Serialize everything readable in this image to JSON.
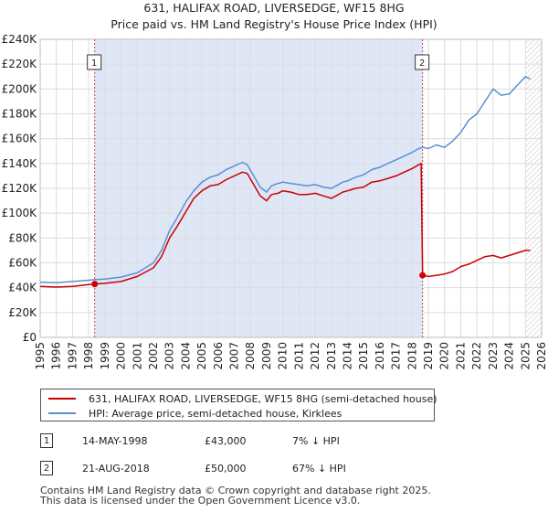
{
  "chart_data": {
    "type": "line",
    "title": "631, HALIFAX ROAD, LIVERSEDGE, WF15 8HG",
    "subtitle": "Price paid vs. HM Land Registry's House Price Index (HPI)",
    "xlim": [
      1995,
      2026
    ],
    "ylim": [
      0,
      240000
    ],
    "x_ticks": [
      1995,
      1996,
      1997,
      1998,
      1999,
      2000,
      2001,
      2002,
      2003,
      2004,
      2005,
      2006,
      2007,
      2008,
      2009,
      2010,
      2011,
      2012,
      2013,
      2014,
      2015,
      2016,
      2017,
      2018,
      2019,
      2020,
      2021,
      2022,
      2023,
      2024,
      2025,
      2026
    ],
    "y_ticks": [
      0,
      20000,
      40000,
      60000,
      80000,
      100000,
      120000,
      140000,
      160000,
      180000,
      200000,
      220000,
      240000
    ],
    "y_tick_labels": [
      "£0",
      "£20K",
      "£40K",
      "£60K",
      "£80K",
      "£100K",
      "£120K",
      "£140K",
      "£160K",
      "£180K",
      "£200K",
      "£220K",
      "£240K"
    ],
    "colors": {
      "price": "#cc0000",
      "hpi": "#5b8fd0",
      "shade": "#dfe7f7",
      "grid": "#dddddd"
    },
    "shaded_range": [
      1998.37,
      2018.64
    ],
    "future_hatch_start": 2025.0,
    "series": [
      {
        "name": "631, HALIFAX ROAD, LIVERSEDGE, WF15 8HG (semi-detached house)",
        "x": [
          1995.0,
          1996.0,
          1997.0,
          1998.0,
          1998.37,
          1999.0,
          2000.0,
          2001.0,
          2002.0,
          2002.5,
          2003.0,
          2003.5,
          2004.0,
          2004.5,
          2005.0,
          2005.5,
          2006.0,
          2006.5,
          2007.0,
          2007.5,
          2007.8,
          2008.2,
          2008.6,
          2009.0,
          2009.3,
          2009.7,
          2010.0,
          2010.5,
          2011.0,
          2011.5,
          2012.0,
          2012.5,
          2013.0,
          2013.3,
          2013.7,
          2014.0,
          2014.5,
          2015.0,
          2015.5,
          2016.0,
          2016.5,
          2017.0,
          2017.5,
          2018.0,
          2018.4,
          2018.55,
          2018.64,
          2019.0,
          2019.5,
          2020.0,
          2020.5,
          2021.0,
          2021.5,
          2022.0,
          2022.5,
          2023.0,
          2023.5,
          2024.0,
          2024.5,
          2025.0,
          2025.3
        ],
        "values": [
          41000,
          40500,
          41000,
          42500,
          43000,
          43500,
          45000,
          49000,
          56000,
          65000,
          80000,
          90000,
          101000,
          112000,
          118000,
          122000,
          123000,
          127000,
          130000,
          133000,
          132000,
          123000,
          114000,
          110000,
          115000,
          116000,
          118000,
          117000,
          115000,
          115000,
          116000,
          114000,
          112000,
          114000,
          117000,
          118000,
          120000,
          121000,
          125000,
          126000,
          128000,
          130000,
          133000,
          136000,
          139000,
          140000,
          50000,
          49000,
          50000,
          51000,
          53000,
          57000,
          59000,
          62000,
          65000,
          66000,
          64000,
          66000,
          68000,
          70000,
          70000
        ]
      },
      {
        "name": "HPI: Average price, semi-detached house, Kirklees",
        "x": [
          1995.0,
          1996.0,
          1997.0,
          1998.0,
          1998.37,
          1999.0,
          2000.0,
          2001.0,
          2002.0,
          2002.5,
          2003.0,
          2003.5,
          2004.0,
          2004.5,
          2005.0,
          2005.5,
          2006.0,
          2006.5,
          2007.0,
          2007.5,
          2007.8,
          2008.2,
          2008.6,
          2009.0,
          2009.3,
          2009.7,
          2010.0,
          2010.5,
          2011.0,
          2011.5,
          2012.0,
          2012.5,
          2013.0,
          2013.3,
          2013.7,
          2014.0,
          2014.5,
          2015.0,
          2015.5,
          2016.0,
          2016.5,
          2017.0,
          2017.5,
          2018.0,
          2018.4,
          2018.64,
          2019.0,
          2019.5,
          2020.0,
          2020.5,
          2021.0,
          2021.5,
          2022.0,
          2022.5,
          2023.0,
          2023.5,
          2024.0,
          2024.5,
          2025.0,
          2025.3
        ],
        "values": [
          44500,
          44000,
          45000,
          46000,
          46500,
          47000,
          48500,
          52000,
          60000,
          70000,
          86000,
          97000,
          109000,
          118000,
          125000,
          129000,
          131000,
          135000,
          138000,
          141000,
          139000,
          130000,
          121000,
          117000,
          122000,
          124000,
          125000,
          124000,
          123000,
          122000,
          123000,
          121000,
          120000,
          122000,
          125000,
          126000,
          129000,
          131000,
          135000,
          137000,
          140000,
          143000,
          146000,
          149000,
          152000,
          153000,
          152000,
          155000,
          153000,
          158000,
          165000,
          175000,
          180000,
          190000,
          200000,
          195000,
          196000,
          203000,
          210000,
          208000
        ]
      }
    ],
    "markers": [
      {
        "label": "1",
        "x": 1998.37,
        "value": 43000
      },
      {
        "label": "2",
        "x": 2018.64,
        "value": 50000
      }
    ]
  },
  "legend": {
    "price_label": "631, HALIFAX ROAD, LIVERSEDGE, WF15 8HG (semi-detached house)",
    "hpi_label": "HPI: Average price, semi-detached house, Kirklees"
  },
  "transactions": [
    {
      "num": "1",
      "date": "14-MAY-1998",
      "price": "£43,000",
      "hpi": "7% ↓ HPI"
    },
    {
      "num": "2",
      "date": "21-AUG-2018",
      "price": "£50,000",
      "hpi": "67% ↓ HPI"
    }
  ],
  "footer": {
    "line1": "Contains HM Land Registry data © Crown copyright and database right 2025.",
    "line2": "This data is licensed under the Open Government Licence v3.0."
  }
}
